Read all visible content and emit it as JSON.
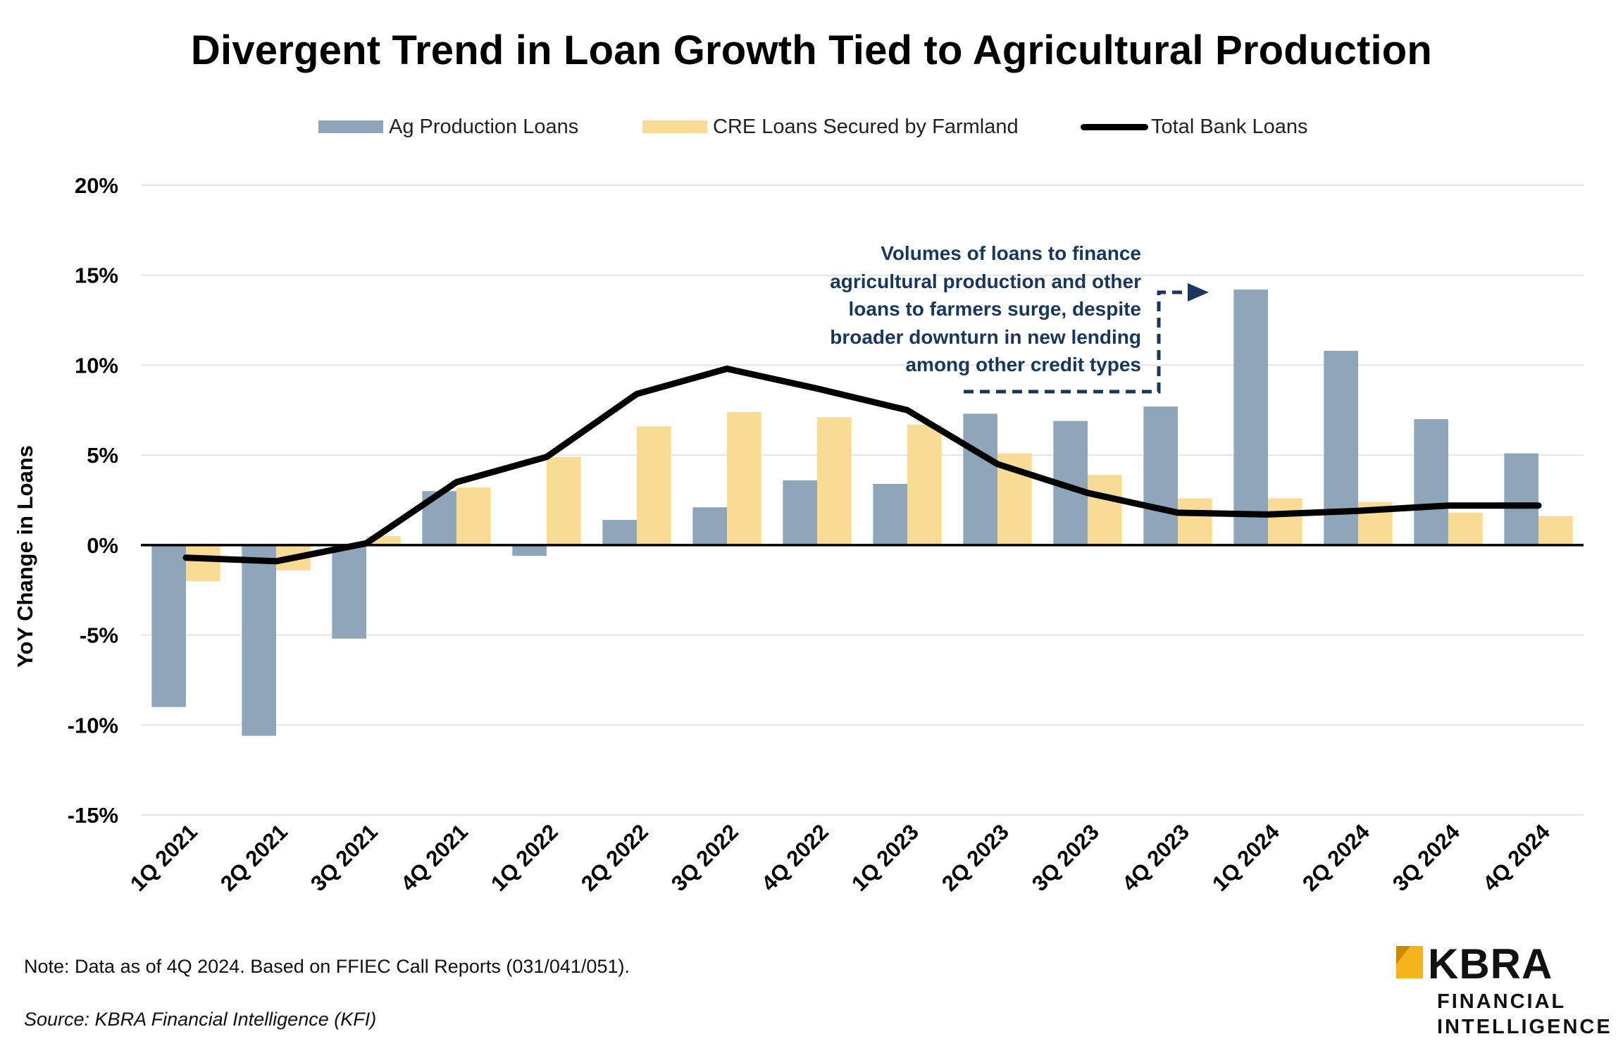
{
  "chart_data": {
    "type": "bar",
    "title": "Divergent Trend in Loan Growth Tied to Agricultural Production",
    "ylabel": "YoY Change in Loans",
    "xlabel": "",
    "ylim": [
      -15,
      20
    ],
    "yticks": [
      20,
      15,
      10,
      5,
      0,
      -5,
      -10,
      -15
    ],
    "ytick_labels": [
      "20%",
      "15%",
      "10%",
      "5%",
      "0%",
      "-5%",
      "-10%",
      "-15%"
    ],
    "grid": true,
    "legend_position": "top",
    "categories": [
      "1Q 2021",
      "2Q 2021",
      "3Q 2021",
      "4Q 2021",
      "1Q 2022",
      "2Q 2022",
      "3Q 2022",
      "4Q 2022",
      "1Q 2023",
      "2Q 2023",
      "3Q 2023",
      "4Q 2023",
      "1Q 2024",
      "2Q 2024",
      "3Q 2024",
      "4Q 2024"
    ],
    "series": [
      {
        "name": "Ag Production Loans",
        "kind": "bar",
        "color": "#8ea5ba",
        "values": [
          -9.0,
          -10.6,
          -5.2,
          3.0,
          -0.6,
          1.4,
          2.1,
          3.6,
          3.4,
          7.3,
          6.9,
          7.7,
          14.2,
          10.8,
          7.0,
          5.1
        ]
      },
      {
        "name": "CRE Loans Secured by Farmland",
        "kind": "bar",
        "color": "#f8db94",
        "values": [
          -2.0,
          -1.4,
          0.5,
          3.2,
          4.9,
          6.6,
          7.4,
          7.1,
          6.7,
          5.1,
          3.9,
          2.6,
          2.6,
          2.4,
          1.8,
          1.6
        ]
      },
      {
        "name": "Total Bank Loans",
        "kind": "line",
        "color": "#000000",
        "values": [
          -0.7,
          -0.9,
          0.1,
          3.5,
          4.9,
          8.4,
          9.8,
          8.7,
          7.5,
          4.5,
          2.9,
          1.8,
          1.7,
          1.9,
          2.2,
          2.2
        ]
      }
    ],
    "annotation": "Volumes of loans to finance agricultural production and other loans to farmers surge, despite broader downturn in new lending among other credit types",
    "annotation_color": "#17375e"
  },
  "annotation_lines": [
    "Volumes of loans to finance",
    "agricultural production and other",
    "loans to farmers surge, despite",
    "broader downturn in new lending",
    "among other credit types"
  ],
  "footer": {
    "note": "Note: Data as of 4Q 2024. Based on FFIEC Call Reports (031/041/051).",
    "source": "Source: KBRA Financial Intelligence (KFI)"
  },
  "logo": {
    "word": "KBRA",
    "line1": "FINANCIAL",
    "line2": "INTELLIGENCE",
    "mark_color": "#f5b21b"
  }
}
